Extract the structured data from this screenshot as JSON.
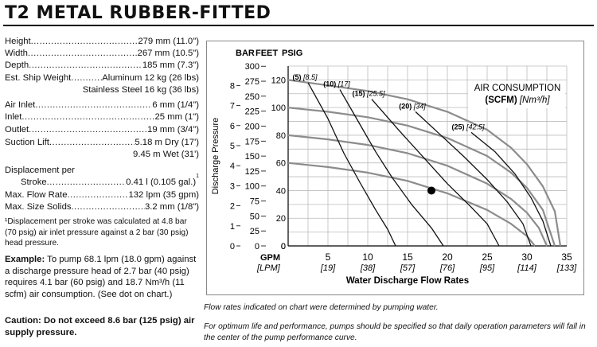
{
  "title": "T2 METAL RUBBER-FITTED",
  "specs": [
    {
      "label": "Height",
      "value": "279 mm (11.0\")"
    },
    {
      "label": "Width",
      "value": "267 mm (10.5\")"
    },
    {
      "label": "Depth",
      "value": "185 mm (7.3\")"
    },
    {
      "label": "Est. Ship Weight",
      "value": "Aluminum 12 kg (26 lbs)"
    },
    {
      "label": "Air Inlet",
      "value": "6 mm (1/4\")"
    },
    {
      "label": "Inlet",
      "value": "25 mm (1\")"
    },
    {
      "label": "Outlet",
      "value": "19 mm (3/4\")"
    },
    {
      "label": "Suction Lift",
      "value": "5.18 m Dry (17')"
    }
  ],
  "ship_weight_line2": "Stainless Steel 16 kg (36 lbs)",
  "suction_lift_line2": "9.45 m Wet (31')",
  "displacement_label_1": "Displacement per",
  "displacement_label_2": "Stroke",
  "displacement_value": "0.41 l (0.105 gal.)",
  "displacement_mark": "1",
  "max_flow": {
    "label": "Max. Flow Rate",
    "value": "132 lpm (35 gpm)"
  },
  "max_solids": {
    "label": "Max. Size Solids",
    "value": "3.2 mm (1/8\")"
  },
  "footnote": "¹Displacement per stroke was calculated at 4.8 bar (70 psig) air inlet pressure against a 2 bar (30 psig) head pressure.",
  "example_label": "Example:",
  "example_text": " To pump 68.1 lpm (18.0 gpm) against a discharge pressure head of 2.7 bar (40 psig) requires 4.1 bar (60 psig) and 18.7 Nm³/h (11 scfm) air consumption. (See dot on chart.)",
  "caution": "Caution: Do not exceed 8.6 bar (125 psig) air supply pressure.",
  "caption_1": "Flow rates indicated on chart were determined by pumping water.",
  "caption_2": "For optimum life and performance, pumps should be specified so that daily operation parameters will fall in the center of the pump performance curve.",
  "chart_data": {
    "type": "line",
    "header_units": [
      "BAR",
      "FEET",
      "PSIG"
    ],
    "ylabel": "Discharge Pressure",
    "xlabel": "Water Discharge Flow Rates",
    "x_unit_labels": [
      "GPM",
      "[LPM]"
    ],
    "xlim": [
      0,
      35
    ],
    "ylim_psig": [
      0,
      130
    ],
    "x_ticks_gpm": [
      "0",
      "5",
      "10",
      "15",
      "20",
      "25",
      "30",
      "35"
    ],
    "x_ticks_lpm": [
      "[19]",
      "[38]",
      "[57]",
      "[76]",
      "[95]",
      "[114]",
      "[133]"
    ],
    "psig_ticks": [
      "0",
      "20",
      "40",
      "60",
      "80",
      "100",
      "120"
    ],
    "feet_ticks": [
      "0",
      "25",
      "50",
      "75",
      "100",
      "125",
      "150",
      "175",
      "200",
      "225",
      "250",
      "275",
      "300"
    ],
    "bar_ticks": [
      "0",
      "1",
      "2",
      "3",
      "4",
      "5",
      "6",
      "7",
      "8"
    ],
    "air_consumption_label": [
      "AIR CONSUMPTION",
      "(SCFM)",
      "[Nm³/h]"
    ],
    "grid": true,
    "air_supply_series": [
      {
        "name": "60 psig",
        "points": [
          [
            0,
            60
          ],
          [
            5,
            57
          ],
          [
            10,
            53
          ],
          [
            15,
            47
          ],
          [
            20,
            38
          ],
          [
            25,
            26
          ],
          [
            28,
            16
          ],
          [
            30,
            7
          ],
          [
            31,
            0
          ]
        ]
      },
      {
        "name": "80 psig",
        "points": [
          [
            0,
            80
          ],
          [
            5,
            77
          ],
          [
            10,
            73
          ],
          [
            15,
            67
          ],
          [
            20,
            58
          ],
          [
            25,
            45
          ],
          [
            28,
            34
          ],
          [
            30,
            24
          ],
          [
            31.5,
            13
          ],
          [
            32.5,
            0
          ]
        ]
      },
      {
        "name": "100 psig",
        "points": [
          [
            0,
            100
          ],
          [
            5,
            97
          ],
          [
            10,
            93
          ],
          [
            15,
            87
          ],
          [
            20,
            78
          ],
          [
            25,
            65
          ],
          [
            28,
            53
          ],
          [
            30,
            42
          ],
          [
            32,
            26
          ],
          [
            33.5,
            0
          ]
        ]
      },
      {
        "name": "120 psig",
        "points": [
          [
            0,
            120
          ],
          [
            5,
            116
          ],
          [
            10,
            112
          ],
          [
            15,
            106
          ],
          [
            20,
            97
          ],
          [
            25,
            84
          ],
          [
            28,
            71
          ],
          [
            30,
            59
          ],
          [
            32,
            43
          ],
          [
            33.5,
            25
          ],
          [
            34.2,
            0
          ]
        ]
      }
    ],
    "air_consumption_series": [
      {
        "label": "(5)",
        "nm3h": "[8.5]",
        "points": [
          [
            2.5,
            118
          ],
          [
            5,
            92
          ],
          [
            7,
            67
          ],
          [
            9,
            46
          ],
          [
            11,
            26
          ],
          [
            12.5,
            12
          ],
          [
            13.5,
            0
          ]
        ]
      },
      {
        "label": "(10)",
        "nm3h": "[17]",
        "points": [
          [
            6.5,
            113
          ],
          [
            9,
            88
          ],
          [
            11,
            68
          ],
          [
            13,
            50
          ],
          [
            15.5,
            30
          ],
          [
            18,
            13
          ],
          [
            19.5,
            0
          ]
        ]
      },
      {
        "label": "(15)",
        "nm3h": "[25.5]",
        "points": [
          [
            10.5,
            106
          ],
          [
            14,
            83
          ],
          [
            17,
            64
          ],
          [
            20,
            45
          ],
          [
            23,
            28
          ],
          [
            25,
            16
          ],
          [
            26.5,
            0
          ]
        ]
      },
      {
        "label": "(20)",
        "nm3h": "[34]",
        "points": [
          [
            16,
            97
          ],
          [
            19,
            81
          ],
          [
            22,
            65
          ],
          [
            25,
            48
          ],
          [
            27.5,
            32
          ],
          [
            29.5,
            16
          ],
          [
            30.5,
            0
          ]
        ]
      },
      {
        "label": "(25)",
        "nm3h": "[42.5]",
        "points": [
          [
            23,
            82
          ],
          [
            26,
            68
          ],
          [
            28.5,
            52
          ],
          [
            30.5,
            35
          ],
          [
            32,
            18
          ],
          [
            33,
            0
          ]
        ]
      }
    ],
    "example_point": {
      "gpm": 18,
      "psig": 40
    }
  }
}
